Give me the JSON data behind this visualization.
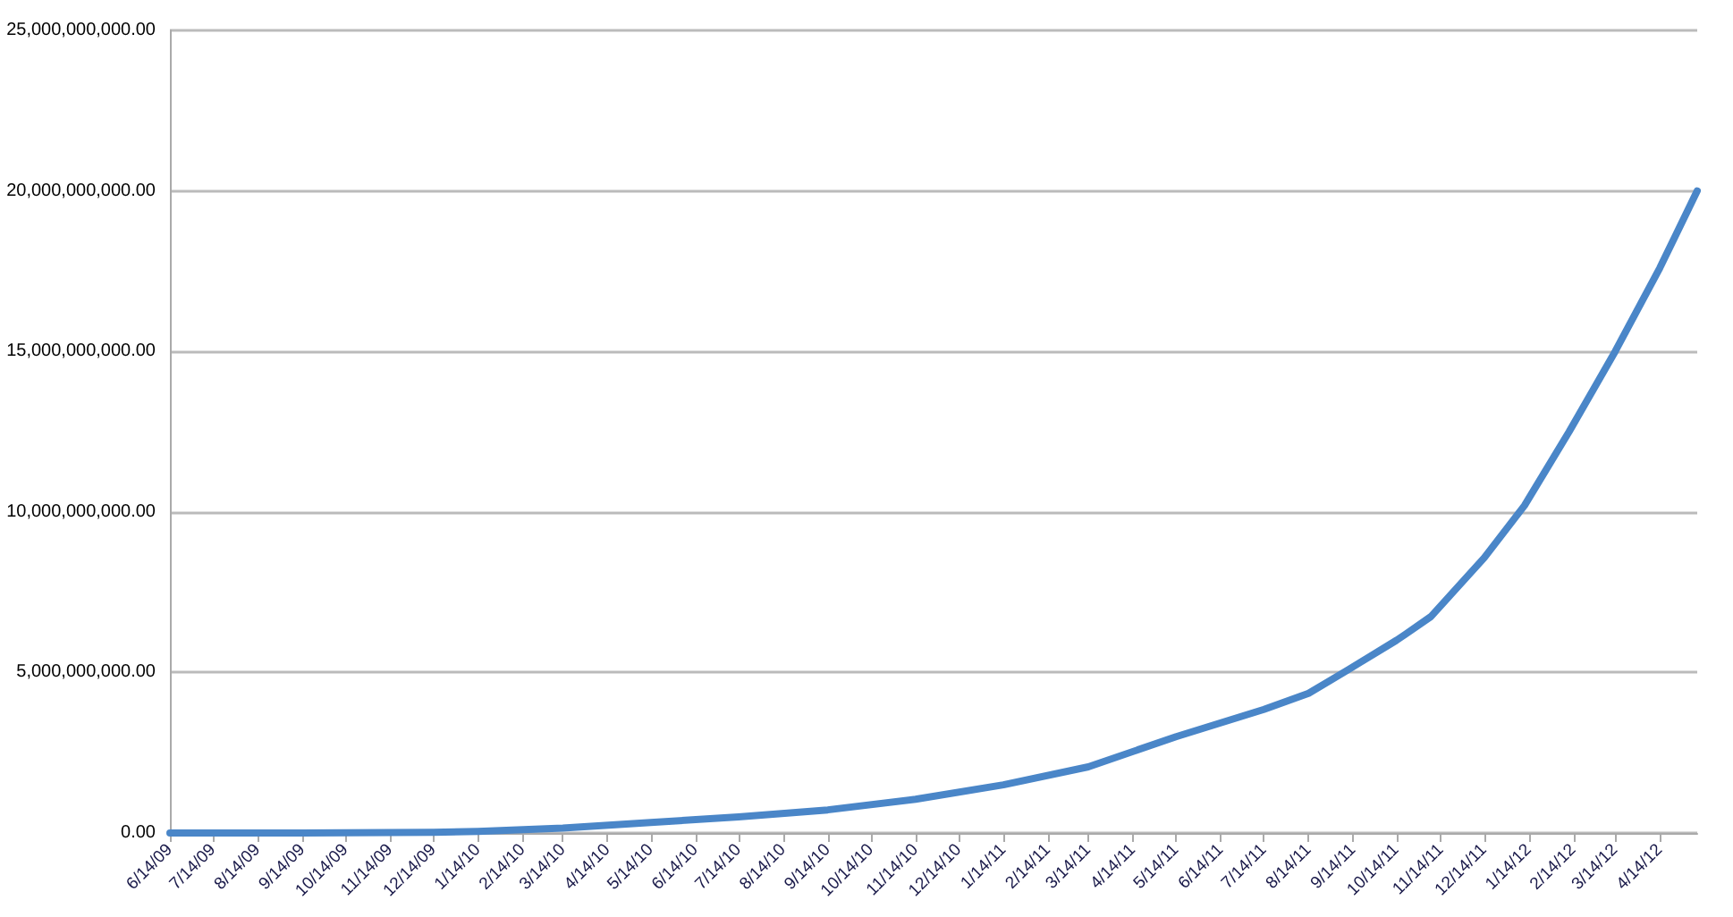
{
  "chart_data": {
    "type": "line",
    "x": [
      "2009-06-14",
      "2009-09-14",
      "2009-12-14",
      "2010-01-14",
      "2010-03-14",
      "2010-05-14",
      "2010-07-14",
      "2010-09-14",
      "2010-11-14",
      "2011-01-14",
      "2011-03-14",
      "2011-05-14",
      "2011-07-14",
      "2011-08-14",
      "2011-09-10",
      "2011-10-14",
      "2011-10-20",
      "2011-11-07",
      "2011-12-14",
      "2012-01-11",
      "2012-02-11",
      "2012-03-14",
      "2012-04-14",
      "2012-05-10"
    ],
    "series": [
      {
        "color": "#4a86c8",
        "values": [
          0,
          0,
          20000000.0,
          50000000.0,
          150000000.0,
          330000000.0,
          500000000.0,
          720000000.0,
          1050000000.0,
          1500000000.0,
          2060000000.0,
          3000000000.0,
          3850000000.0,
          4350000000.0,
          5070000000.0,
          6000000000.0,
          6180000000.0,
          6740000000.0,
          8570000000.0,
          10200000000.0,
          12500000000.0,
          15000000000.0,
          17600000000.0,
          20000000000.0
        ]
      }
    ],
    "xlim": [
      "2009-06-14",
      "2012-05-10"
    ],
    "xticks": [
      {
        "value": "2009-06-14",
        "label": "6/14/09"
      },
      {
        "value": "2009-07-14",
        "label": "7/14/09"
      },
      {
        "value": "2009-08-14",
        "label": "8/14/09"
      },
      {
        "value": "2009-09-14",
        "label": "9/14/09"
      },
      {
        "value": "2009-10-14",
        "label": "10/14/09"
      },
      {
        "value": "2009-11-14",
        "label": "11/14/09"
      },
      {
        "value": "2009-12-14",
        "label": "12/14/09"
      },
      {
        "value": "2010-01-14",
        "label": "1/14/10"
      },
      {
        "value": "2010-02-14",
        "label": "2/14/10"
      },
      {
        "value": "2010-03-14",
        "label": "3/14/10"
      },
      {
        "value": "2010-04-14",
        "label": "4/14/10"
      },
      {
        "value": "2010-05-14",
        "label": "5/14/10"
      },
      {
        "value": "2010-06-14",
        "label": "6/14/10"
      },
      {
        "value": "2010-07-14",
        "label": "7/14/10"
      },
      {
        "value": "2010-08-14",
        "label": "8/14/10"
      },
      {
        "value": "2010-09-14",
        "label": "9/14/10"
      },
      {
        "value": "2010-10-14",
        "label": "10/14/10"
      },
      {
        "value": "2010-11-14",
        "label": "11/14/10"
      },
      {
        "value": "2010-12-14",
        "label": "12/14/10"
      },
      {
        "value": "2011-01-14",
        "label": "1/14/11"
      },
      {
        "value": "2011-02-14",
        "label": "2/14/11"
      },
      {
        "value": "2011-03-14",
        "label": "3/14/11"
      },
      {
        "value": "2011-04-14",
        "label": "4/14/11"
      },
      {
        "value": "2011-05-14",
        "label": "5/14/11"
      },
      {
        "value": "2011-06-14",
        "label": "6/14/11"
      },
      {
        "value": "2011-07-14",
        "label": "7/14/11"
      },
      {
        "value": "2011-08-14",
        "label": "8/14/11"
      },
      {
        "value": "2011-09-14",
        "label": "9/14/11"
      },
      {
        "value": "2011-10-14",
        "label": "10/14/11"
      },
      {
        "value": "2011-11-14",
        "label": "11/14/11"
      },
      {
        "value": "2011-12-14",
        "label": "12/14/11"
      },
      {
        "value": "2012-01-14",
        "label": "1/14/12"
      },
      {
        "value": "2012-02-14",
        "label": "2/14/12"
      },
      {
        "value": "2012-03-14",
        "label": "3/14/12"
      },
      {
        "value": "2012-04-14",
        "label": "4/14/12"
      }
    ],
    "ylim": [
      0,
      25000000000
    ],
    "yticks": [
      {
        "value": 0,
        "label": "0.00"
      },
      {
        "value": 5000000000,
        "label": "5,000,000,000.00"
      },
      {
        "value": 10000000000,
        "label": "10,000,000,000.00"
      },
      {
        "value": 15000000000,
        "label": "15,000,000,000.00"
      },
      {
        "value": 20000000000,
        "label": "20,000,000,000.00"
      },
      {
        "value": 25000000000,
        "label": "25,000,000,000.00"
      }
    ],
    "grid": "y",
    "marker": "none",
    "line_style": "solid"
  }
}
